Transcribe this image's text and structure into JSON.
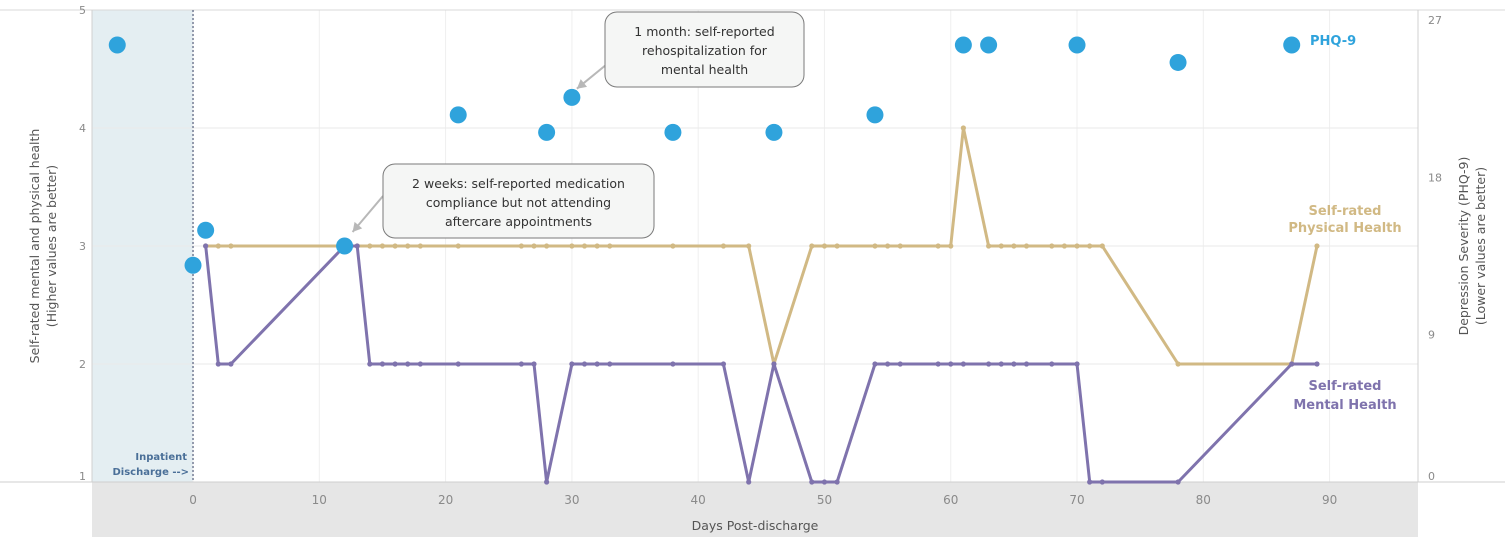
{
  "chart_data": {
    "type": "line",
    "xlabel": "Days Post-discharge",
    "x_ticks": [
      0,
      10,
      20,
      30,
      40,
      50,
      60,
      70,
      80,
      90
    ],
    "xlim": [
      -8,
      97
    ],
    "left_axis": {
      "label_line1": "Self-rated mental and physical health",
      "label_line2": "(Higher values are better)",
      "ticks": [
        1,
        2,
        3,
        4,
        5
      ],
      "range": [
        1,
        5
      ]
    },
    "right_axis": {
      "label_line1": "Depression Severity (PHQ-9)",
      "label_line2": "(Lower values are better)",
      "ticks": [
        0,
        9,
        18,
        27
      ],
      "range": [
        0,
        27
      ]
    },
    "discharge_marker": {
      "line1": "Inpatient",
      "line2": "Discharge -->",
      "x": 0,
      "shaded_from": -8
    },
    "series": [
      {
        "name": "PHQ-9",
        "axis": "right",
        "color": "#2fa3dc",
        "label_lines": [
          "PHQ-9"
        ],
        "points": [
          [
            -6,
            25
          ],
          [
            0,
            12.4
          ],
          [
            1,
            14.4
          ],
          [
            12,
            13.5
          ],
          [
            21,
            21
          ],
          [
            28,
            20
          ],
          [
            30,
            22
          ],
          [
            38,
            20
          ],
          [
            46,
            20
          ],
          [
            54,
            21
          ],
          [
            61,
            25
          ],
          [
            63,
            25
          ],
          [
            70,
            25
          ],
          [
            78,
            24
          ],
          [
            87,
            25
          ]
        ]
      },
      {
        "name": "Self-rated Physical Health",
        "axis": "left",
        "color": "#d1b984",
        "label_lines": [
          "Self-rated",
          "Physical Health"
        ],
        "points": [
          [
            1,
            3
          ],
          [
            2,
            3
          ],
          [
            3,
            3
          ],
          [
            12,
            3
          ],
          [
            13,
            3
          ],
          [
            14,
            3
          ],
          [
            15,
            3
          ],
          [
            16,
            3
          ],
          [
            17,
            3
          ],
          [
            18,
            3
          ],
          [
            21,
            3
          ],
          [
            26,
            3
          ],
          [
            27,
            3
          ],
          [
            28,
            3
          ],
          [
            30,
            3
          ],
          [
            31,
            3
          ],
          [
            32,
            3
          ],
          [
            33,
            3
          ],
          [
            38,
            3
          ],
          [
            42,
            3
          ],
          [
            44,
            3
          ],
          [
            46,
            2
          ],
          [
            49,
            3
          ],
          [
            50,
            3
          ],
          [
            51,
            3
          ],
          [
            54,
            3
          ],
          [
            55,
            3
          ],
          [
            56,
            3
          ],
          [
            59,
            3
          ],
          [
            60,
            3
          ],
          [
            61,
            4
          ],
          [
            63,
            3
          ],
          [
            64,
            3
          ],
          [
            65,
            3
          ],
          [
            66,
            3
          ],
          [
            68,
            3
          ],
          [
            69,
            3
          ],
          [
            70,
            3
          ],
          [
            71,
            3
          ],
          [
            72,
            3
          ],
          [
            78,
            2
          ],
          [
            87,
            2
          ],
          [
            89,
            3
          ]
        ]
      },
      {
        "name": "Self-rated Mental Health",
        "axis": "left",
        "color": "#7f73ad",
        "label_lines": [
          "Self-rated",
          "Mental Health"
        ],
        "points": [
          [
            1,
            3
          ],
          [
            2,
            2
          ],
          [
            3,
            2
          ],
          [
            12,
            3
          ],
          [
            13,
            3
          ],
          [
            14,
            2
          ],
          [
            15,
            2
          ],
          [
            16,
            2
          ],
          [
            17,
            2
          ],
          [
            18,
            2
          ],
          [
            21,
            2
          ],
          [
            26,
            2
          ],
          [
            27,
            2
          ],
          [
            28,
            1
          ],
          [
            30,
            2
          ],
          [
            31,
            2
          ],
          [
            32,
            2
          ],
          [
            33,
            2
          ],
          [
            38,
            2
          ],
          [
            42,
            2
          ],
          [
            44,
            1
          ],
          [
            46,
            2
          ],
          [
            49,
            1
          ],
          [
            50,
            1
          ],
          [
            51,
            1
          ],
          [
            54,
            2
          ],
          [
            55,
            2
          ],
          [
            56,
            2
          ],
          [
            59,
            2
          ],
          [
            60,
            2
          ],
          [
            61,
            2
          ],
          [
            63,
            2
          ],
          [
            64,
            2
          ],
          [
            65,
            2
          ],
          [
            66,
            2
          ],
          [
            68,
            2
          ],
          [
            70,
            2
          ],
          [
            71,
            1
          ],
          [
            72,
            1
          ],
          [
            78,
            1
          ],
          [
            87,
            2
          ],
          [
            89,
            2
          ]
        ]
      }
    ],
    "annotations": [
      {
        "lines": [
          "2 weeks: self-reported medication",
          "compliance but not attending",
          "aftercare appointments"
        ],
        "target": [
          12,
          3
        ]
      },
      {
        "lines": [
          "1 month: self-reported",
          "rehospitalization for",
          "mental health"
        ],
        "target": [
          30,
          4.35
        ]
      }
    ]
  }
}
